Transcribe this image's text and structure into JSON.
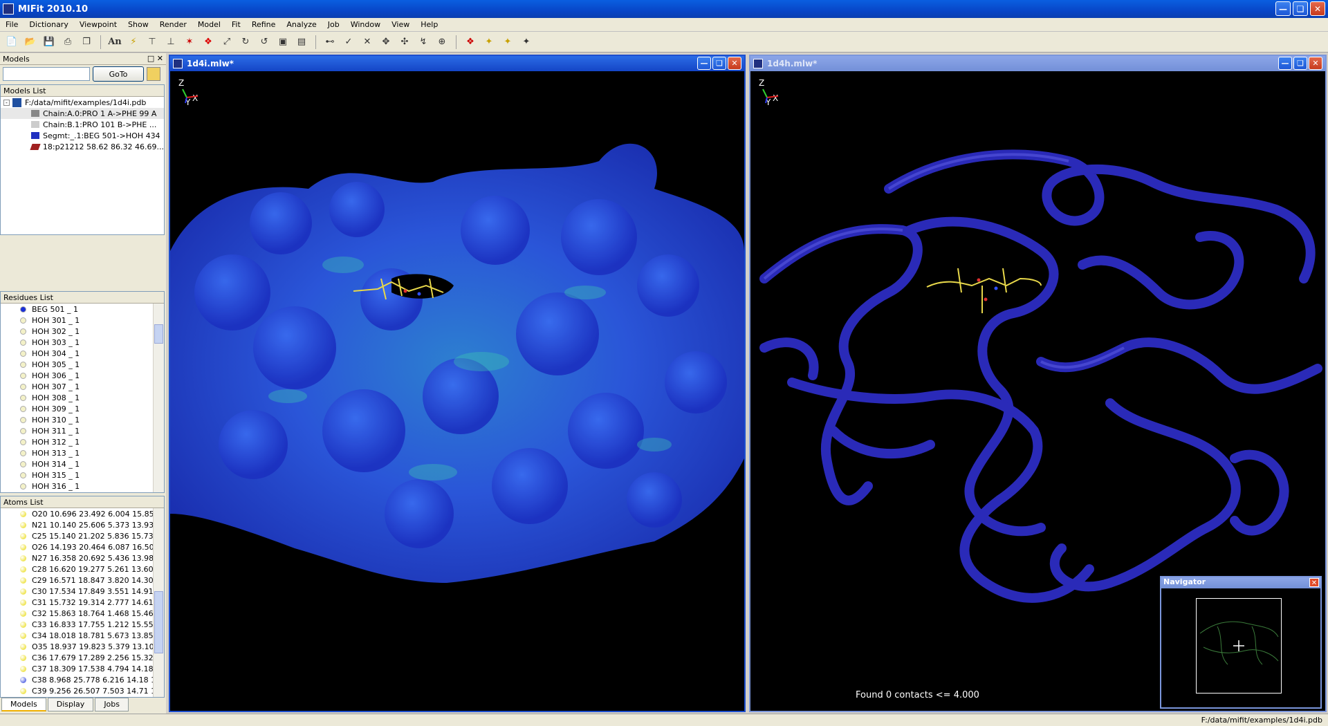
{
  "app": {
    "title": "MIFit 2010.10"
  },
  "menu": [
    "File",
    "Dictionary",
    "Viewpoint",
    "Show",
    "Render",
    "Model",
    "Fit",
    "Refine",
    "Analyze",
    "Job",
    "Window",
    "View",
    "Help"
  ],
  "toolbar": {
    "icons": [
      "new-icon",
      "open-icon",
      "save-icon",
      "print-icon",
      "copy-icon",
      "annotate-icon",
      "lightning-icon",
      "add-atom-icon",
      "bond-icon",
      "fit-icon",
      "fit-red-icon",
      "zoom-icon",
      "rotate90-icon",
      "rotate-90-icon",
      "box-icon",
      "select-icon",
      "merge-icon",
      "check-icon",
      "cancel-icon",
      "move-icon",
      "translate-icon",
      "torsion-icon",
      "center-icon",
      "markers-icon",
      "pick-icon",
      "pick2-icon",
      "pick3-icon"
    ],
    "an_label": "An"
  },
  "left": {
    "models_header": "Models",
    "goto_label": "GoTo",
    "goto_value": "",
    "models_list_title": "Models List",
    "tree": [
      {
        "label": "F:/data/mifit/examples/1d4i.pdb"
      },
      {
        "label": "Chain:A.0:PRO 1 A->PHE 99 A"
      },
      {
        "label": "Chain:B.1:PRO 101 B->PHE ..."
      },
      {
        "label": "Segmt:_.1:BEG 501->HOH 434"
      },
      {
        "label": "18:p21212 58.62 86.32 46.69..."
      }
    ],
    "residues_title": "Residues List",
    "residues": [
      {
        "label": "BEG 501 _ 1",
        "color": "#1a2fd8"
      },
      {
        "label": "HOH 301 _ 1",
        "color": "#f3f1c8"
      },
      {
        "label": "HOH 302 _ 1",
        "color": "#f3f1c8"
      },
      {
        "label": "HOH 303 _ 1",
        "color": "#f3f1c8"
      },
      {
        "label": "HOH 304 _ 1",
        "color": "#f3f1c8"
      },
      {
        "label": "HOH 305 _ 1",
        "color": "#f3f1c8"
      },
      {
        "label": "HOH 306 _ 1",
        "color": "#f3f1c8"
      },
      {
        "label": "HOH 307 _ 1",
        "color": "#f3f1c8"
      },
      {
        "label": "HOH 308 _ 1",
        "color": "#f3f1c8"
      },
      {
        "label": "HOH 309 _ 1",
        "color": "#f3f1c8"
      },
      {
        "label": "HOH 310 _ 1",
        "color": "#f3f1c8"
      },
      {
        "label": "HOH 311 _ 1",
        "color": "#f3f1c8"
      },
      {
        "label": "HOH 312 _ 1",
        "color": "#f3f1c8"
      },
      {
        "label": "HOH 313 _ 1",
        "color": "#f3f1c8"
      },
      {
        "label": "HOH 314 _ 1",
        "color": "#f3f1c8"
      },
      {
        "label": "HOH 315 _ 1",
        "color": "#f3f1c8"
      },
      {
        "label": "HOH 316 _ 1",
        "color": "#f3f1c8"
      }
    ],
    "atoms_title": "Atoms List",
    "atoms": [
      {
        "label": "O20 10.696 23.492 6.004 15.85 ...",
        "color": "#e8d800"
      },
      {
        "label": "N21 10.140 25.606 5.373 13.93 ...",
        "color": "#e8d800"
      },
      {
        "label": "C25 15.140 21.202 5.836 15.73 ...",
        "color": "#e8d800"
      },
      {
        "label": "O26 14.193 20.464 6.087 16.50 ...",
        "color": "#e8d800"
      },
      {
        "label": "N27 16.358 20.692 5.436 13.98 ...",
        "color": "#e8d800"
      },
      {
        "label": "C28 16.620 19.277 5.261 13.60 ...",
        "color": "#e8d800"
      },
      {
        "label": "C29 16.571 18.847 3.820 14.30 ...",
        "color": "#e8d800"
      },
      {
        "label": "C30 17.534 17.849 3.551 14.91 ...",
        "color": "#e8d800"
      },
      {
        "label": "C31 15.732 19.314 2.777 14.61 ...",
        "color": "#e8d800"
      },
      {
        "label": "C32 15.863 18.764 1.468 15.46 ...",
        "color": "#e8d800"
      },
      {
        "label": "C33 16.833 17.755 1.212 15.55 ...",
        "color": "#e8d800"
      },
      {
        "label": "C34 18.018 18.781 5.673 13.85 ...",
        "color": "#e8d800"
      },
      {
        "label": "O35 18.937 19.823 5.379 13.10 ...",
        "color": "#e8d800"
      },
      {
        "label": "C36 17.679 17.289 2.256 15.32 ...",
        "color": "#e8d800"
      },
      {
        "label": "C37 18.309 17.538 4.794 14.18 ...",
        "color": "#e8d800"
      },
      {
        "label": "C38 8.968 25.778 6.216 14.18 1...",
        "color": "#1a2fd8"
      },
      {
        "label": "C39 9.256 26.507 7.503 14.71 1...",
        "color": "#e8d800"
      }
    ],
    "tabs": [
      "Models",
      "Display",
      "Jobs"
    ]
  },
  "windows": [
    {
      "title": "1d4i.mlw*"
    },
    {
      "title": "1d4h.mlw*",
      "status": "Found 0 contacts <= 4.000"
    }
  ],
  "axes": {
    "z": "Z",
    "y": "Y",
    "x": "X"
  },
  "navigator": {
    "title": "Navigator"
  },
  "statusbar": {
    "path": "F:/data/mifit/examples/1d4i.pdb"
  }
}
